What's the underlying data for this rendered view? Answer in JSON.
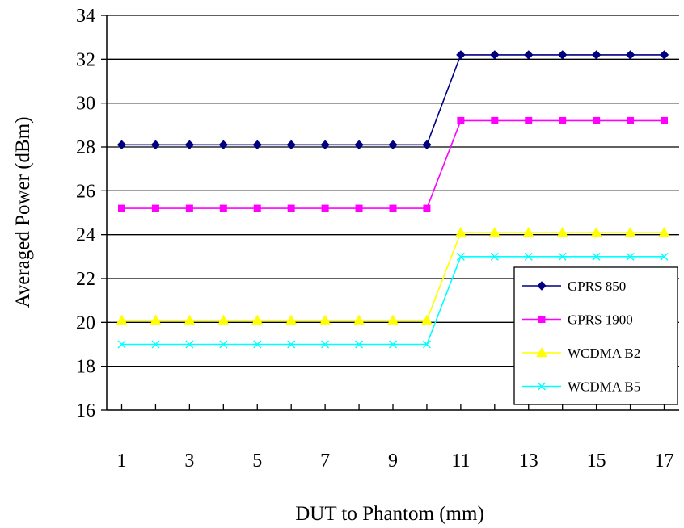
{
  "chart_data": {
    "type": "line",
    "title": "",
    "xlabel": "DUT to Phantom (mm)",
    "ylabel": "Averaged Power (dBm)",
    "x": [
      1,
      2,
      3,
      4,
      5,
      6,
      7,
      8,
      9,
      10,
      11,
      12,
      13,
      14,
      15,
      16,
      17
    ],
    "x_tick_labels": [
      "1",
      "3",
      "5",
      "7",
      "9",
      "11",
      "13",
      "15",
      "17"
    ],
    "y_tick_labels": [
      "16",
      "18",
      "20",
      "22",
      "24",
      "26",
      "28",
      "30",
      "32",
      "34"
    ],
    "ylim": [
      16,
      34
    ],
    "xlim": [
      1,
      17
    ],
    "grid": "horizontal",
    "legend_position": "bottom-right",
    "series": [
      {
        "name": "GPRS 850",
        "color": "#000080",
        "marker": "diamond",
        "values": [
          28.1,
          28.1,
          28.1,
          28.1,
          28.1,
          28.1,
          28.1,
          28.1,
          28.1,
          28.1,
          32.2,
          32.2,
          32.2,
          32.2,
          32.2,
          32.2,
          32.2
        ]
      },
      {
        "name": "GPRS 1900",
        "color": "#ff00ff",
        "marker": "square",
        "values": [
          25.2,
          25.2,
          25.2,
          25.2,
          25.2,
          25.2,
          25.2,
          25.2,
          25.2,
          25.2,
          29.2,
          29.2,
          29.2,
          29.2,
          29.2,
          29.2,
          29.2
        ]
      },
      {
        "name": "WCDMA B2",
        "color": "#ffff00",
        "marker": "triangle",
        "values": [
          20.1,
          20.1,
          20.1,
          20.1,
          20.1,
          20.1,
          20.1,
          20.1,
          20.1,
          20.1,
          24.1,
          24.1,
          24.1,
          24.1,
          24.1,
          24.1,
          24.1
        ]
      },
      {
        "name": "WCDMA B5",
        "color": "#00ffff",
        "marker": "x",
        "values": [
          19.0,
          19.0,
          19.0,
          19.0,
          19.0,
          19.0,
          19.0,
          19.0,
          19.0,
          19.0,
          23.0,
          23.0,
          23.0,
          23.0,
          23.0,
          23.0,
          23.0
        ]
      }
    ]
  }
}
